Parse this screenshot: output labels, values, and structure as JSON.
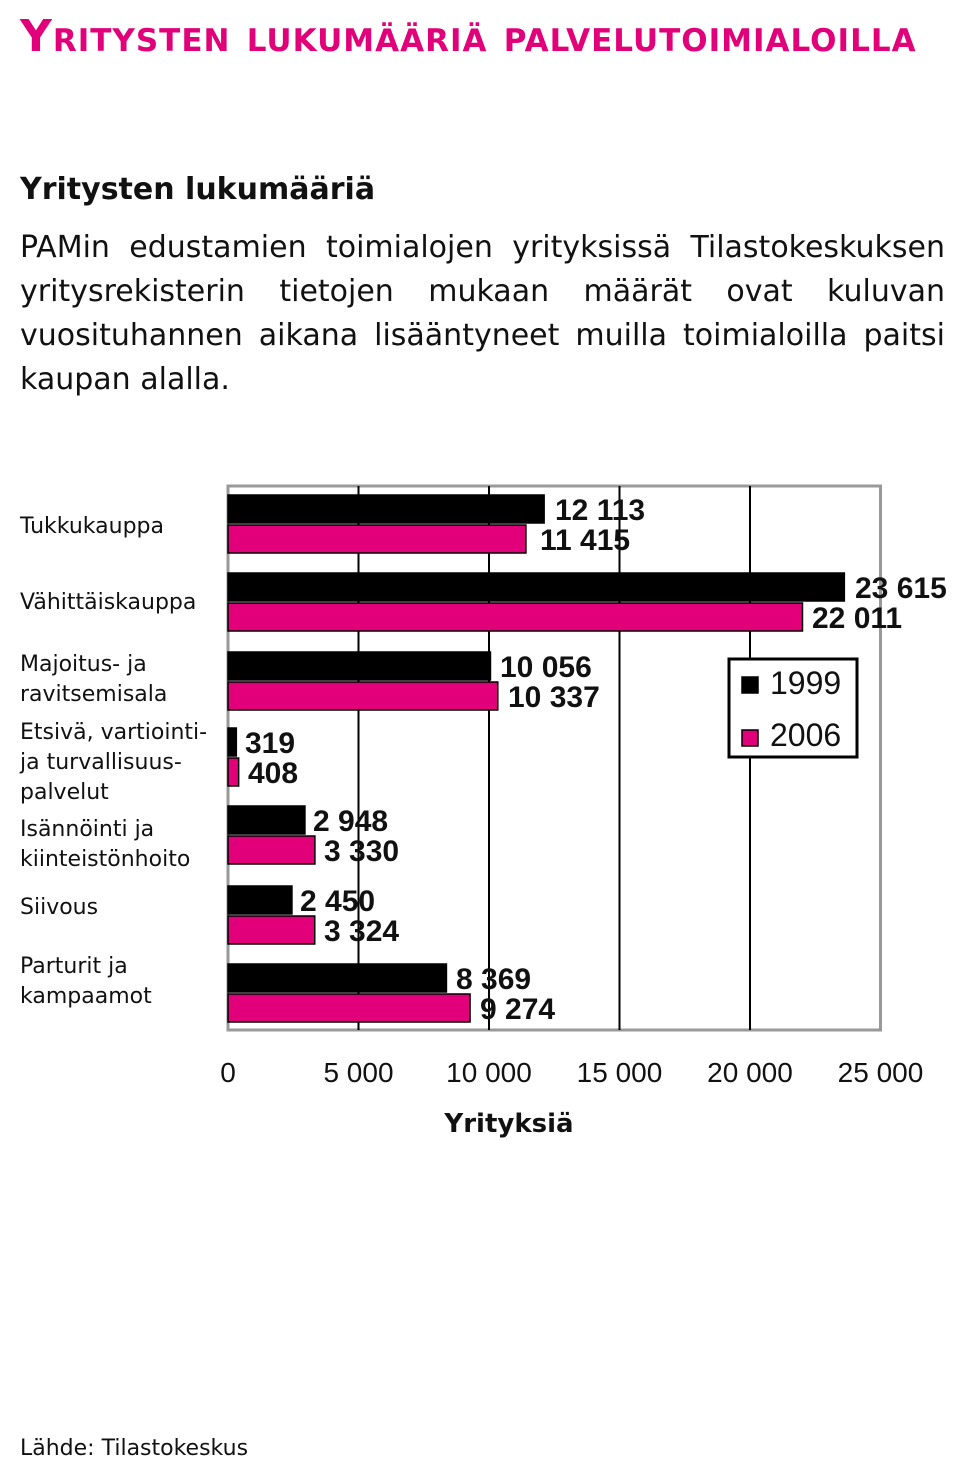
{
  "page": {
    "title": "Yritysten lukumääriä palvelutoimialoilla",
    "heading": "Yritysten lukumääriä",
    "intro": "PAMin edustamien toimialojen yrityksissä Tilastokeskuksen yritysrekisterin tietojen mukaan määrät ovat kuluvan vuosituhannen aikana lisääntyneet muilla toimialoilla paitsi kaupan alalla.",
    "source": "Lähde: Tilastokeskus"
  },
  "colors": {
    "title": "#e2007a",
    "series_1999": "#000000",
    "series_2006": "#e2007a",
    "grid": "#000000",
    "frame": "#999999"
  },
  "chart_data": {
    "type": "bar",
    "orientation": "horizontal",
    "categories": [
      "Tukkukauppa",
      "Vähittäiskauppa",
      "Majoitus- ja\nravitsemisala",
      "Etsivä, vartiointi-\nja turvallisuus-\npalvelut",
      "Isännöinti ja\nkiinteistönhoito",
      "Siivous",
      "Parturit ja\nkampaamot"
    ],
    "series": [
      {
        "name": "1999",
        "values": [
          12113,
          23615,
          10056,
          319,
          2948,
          2450,
          8369
        ],
        "value_labels": [
          "12 113",
          "23 615",
          "10 056",
          "319",
          "2 948",
          "2 450",
          "8 369"
        ]
      },
      {
        "name": "2006",
        "values": [
          11415,
          22011,
          10337,
          408,
          3330,
          3324,
          9274
        ],
        "value_labels": [
          "11 415",
          "22 011",
          "10 337",
          "408",
          "3 330",
          "3 324",
          "9 274"
        ]
      }
    ],
    "xlabel": "Yrityksiä",
    "xlim": [
      0,
      25000
    ],
    "xticks": [
      0,
      5000,
      10000,
      15000,
      20000,
      25000
    ],
    "xtick_labels": [
      "0",
      "5 000",
      "10 000",
      "15 000",
      "20 000",
      "25 000"
    ],
    "grid": "vertical",
    "legend": "right"
  }
}
